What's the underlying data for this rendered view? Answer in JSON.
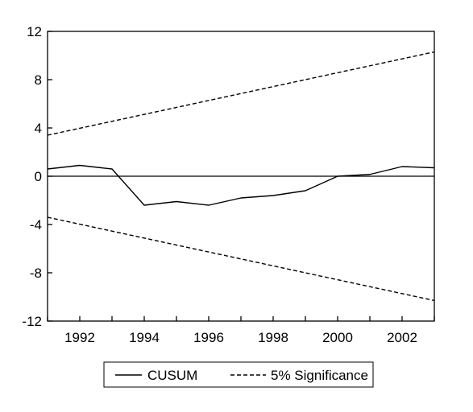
{
  "chart_data": {
    "type": "line",
    "title": "",
    "xlabel": "",
    "ylabel": "",
    "xlim": [
      1991,
      2003
    ],
    "ylim": [
      -12,
      12
    ],
    "x_ticks": [
      1992,
      1994,
      1996,
      1998,
      2000,
      2002
    ],
    "y_ticks": [
      12,
      8,
      4,
      0,
      -4,
      -8,
      -12
    ],
    "y_tick_labels": [
      "12",
      "8",
      "4",
      "0",
      "-4",
      "-8",
      "-12"
    ],
    "zero_line": true,
    "grid": false,
    "legend_position": "bottom",
    "series": [
      {
        "name": "CUSUM",
        "style": "solid",
        "x": [
          1991,
          1992,
          1993,
          1994,
          1995,
          1996,
          1997,
          1998,
          1999,
          2000,
          2001,
          2002,
          2003
        ],
        "y": [
          0.6,
          0.9,
          0.6,
          -2.4,
          -2.1,
          -2.4,
          -1.8,
          -1.6,
          -1.2,
          0.0,
          0.15,
          0.8,
          0.7
        ]
      },
      {
        "name": "5% Significance",
        "style": "dashed",
        "x": [
          1991,
          2003
        ],
        "y": [
          3.4,
          10.3
        ]
      },
      {
        "name": "5% Significance",
        "style": "dashed",
        "x": [
          1991,
          2003
        ],
        "y": [
          -3.4,
          -10.3
        ]
      }
    ],
    "legend": [
      {
        "label": "CUSUM",
        "style": "solid"
      },
      {
        "label": "5% Significance",
        "style": "dashed"
      }
    ]
  }
}
